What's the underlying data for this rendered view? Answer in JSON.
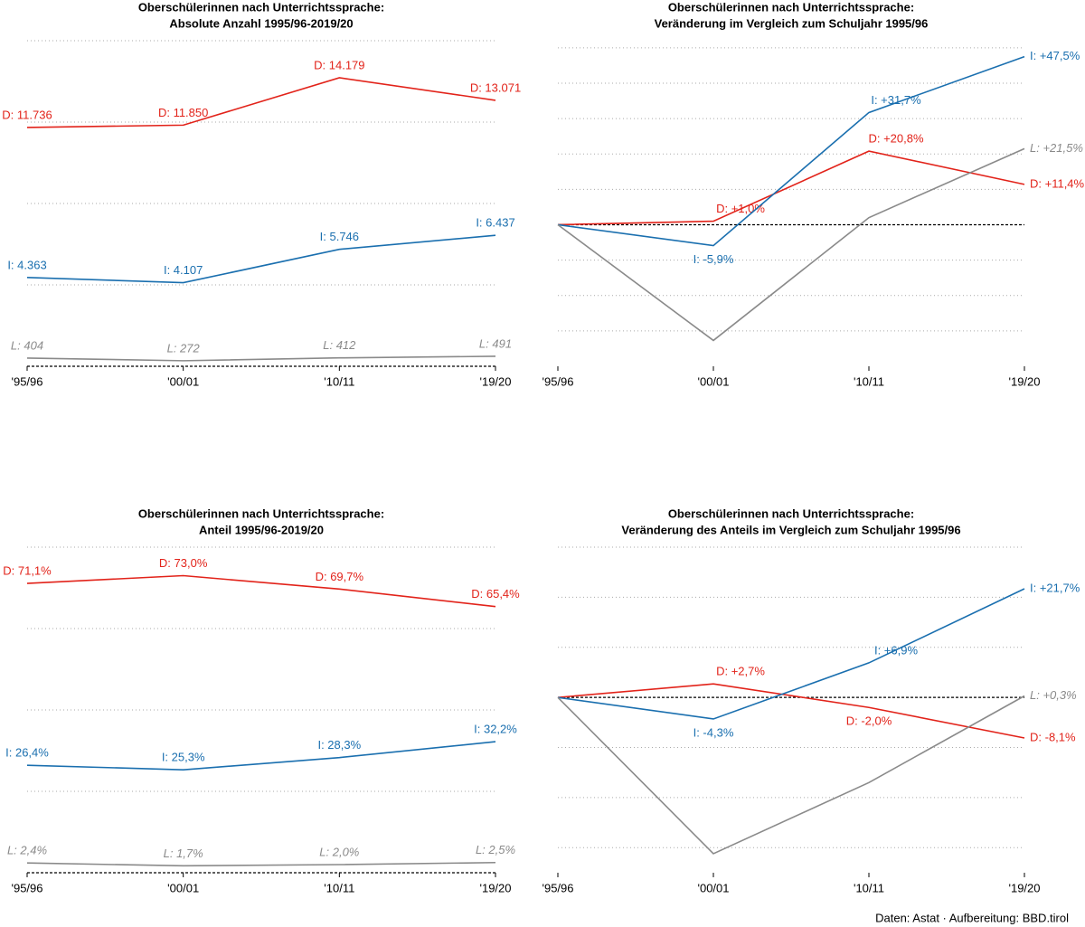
{
  "chart_data": [
    {
      "type": "line",
      "title": [
        "Oberschülerinnen nach Unterrichtssprache:",
        "Absolute Anzahl 1995/96-2019/20"
      ],
      "categories": [
        "'95/96",
        "'00/01",
        "'10/11",
        "'19/20"
      ],
      "ylim": [
        0,
        16000
      ],
      "yticks": [
        4000,
        8000,
        12000,
        16000
      ],
      "grid": true,
      "series": [
        {
          "name": "D",
          "color": "#e2231a",
          "values": [
            11736,
            11850,
            14179,
            13071
          ],
          "value_labels": [
            "D: 11.736",
            "D: 11.850",
            "D: 14.179",
            "D: 13.071"
          ]
        },
        {
          "name": "I",
          "color": "#1a6faf",
          "values": [
            4363,
            4107,
            5746,
            6437
          ],
          "value_labels": [
            "I: 4.363",
            "I: 4.107",
            "I: 5.746",
            "I: 6.437"
          ]
        },
        {
          "name": "L",
          "color": "#8a8a8a",
          "values": [
            404,
            272,
            412,
            491
          ],
          "value_labels": [
            "L: 404",
            "L: 272",
            "L: 412",
            "L: 491"
          ]
        }
      ]
    },
    {
      "type": "line",
      "title": [
        "Oberschülerinnen nach Unterrichtssprache:",
        "Veränderung im Vergleich zum Schuljahr 1995/96"
      ],
      "categories": [
        "'95/96",
        "'00/01",
        "'10/11",
        "'19/20"
      ],
      "ylim": [
        -40,
        52
      ],
      "yticks": [
        -30,
        -20,
        -10,
        10,
        20,
        30,
        40,
        50
      ],
      "grid": true,
      "series": [
        {
          "name": "D",
          "color": "#e2231a",
          "values": [
            0,
            1.0,
            20.8,
            11.4
          ],
          "value_labels": [
            null,
            "D: +1,0%",
            "D: +20,8%",
            "D: +11,4%"
          ]
        },
        {
          "name": "I",
          "color": "#1a6faf",
          "values": [
            0,
            -5.9,
            31.7,
            47.5
          ],
          "value_labels": [
            null,
            "I: -5,9%",
            "I: +31,7%",
            "I: +47,5%"
          ]
        },
        {
          "name": "L",
          "color": "#8a8a8a",
          "values": [
            0,
            -32.7,
            2.0,
            21.5
          ],
          "value_labels": [
            null,
            null,
            null,
            "L: +21,5%"
          ]
        }
      ]
    },
    {
      "type": "line",
      "title": [
        "Oberschülerinnen nach Unterrichtssprache:",
        "Anteil 1995/96-2019/20"
      ],
      "categories": [
        "'95/96",
        "'00/01",
        "'10/11",
        "'19/20"
      ],
      "ylim": [
        0,
        80
      ],
      "yticks": [
        20,
        40,
        60,
        80
      ],
      "grid": true,
      "series": [
        {
          "name": "D",
          "color": "#e2231a",
          "values": [
            71.1,
            73.0,
            69.7,
            65.4
          ],
          "value_labels": [
            "D: 71,1%",
            "D: 73,0%",
            "D: 69,7%",
            "D: 65,4%"
          ]
        },
        {
          "name": "I",
          "color": "#1a6faf",
          "values": [
            26.4,
            25.3,
            28.3,
            32.2
          ],
          "value_labels": [
            "I: 26,4%",
            "I: 25,3%",
            "I: 28,3%",
            "I: 32,2%"
          ]
        },
        {
          "name": "L",
          "color": "#8a8a8a",
          "values": [
            2.4,
            1.7,
            2.0,
            2.5
          ],
          "value_labels": [
            "L: 2,4%",
            "L: 1,7%",
            "L: 2,0%",
            "L: 2,5%"
          ]
        }
      ]
    },
    {
      "type": "line",
      "title": [
        "Oberschülerinnen nach Unterrichtssprache:",
        "Veränderung des Anteils im Vergleich zum Schuljahr 1995/96"
      ],
      "categories": [
        "'95/96",
        "'00/01",
        "'10/11",
        "'19/20"
      ],
      "ylim": [
        -35,
        30
      ],
      "yticks": [
        -30,
        -20,
        -10,
        10,
        20,
        30
      ],
      "grid": true,
      "series": [
        {
          "name": "D",
          "color": "#e2231a",
          "values": [
            0,
            2.7,
            -2.0,
            -8.1
          ],
          "value_labels": [
            null,
            "D: +2,7%",
            "D: -2,0%",
            "D: -8,1%"
          ]
        },
        {
          "name": "I",
          "color": "#1a6faf",
          "values": [
            0,
            -4.3,
            6.9,
            21.7
          ],
          "value_labels": [
            null,
            "I: -4,3%",
            "I: +6,9%",
            "I: +21,7%"
          ]
        },
        {
          "name": "L",
          "color": "#8a8a8a",
          "values": [
            0,
            -31.2,
            -17.0,
            0.3
          ],
          "value_labels": [
            null,
            null,
            null,
            "L: +0,3%"
          ]
        }
      ]
    }
  ],
  "footer": "Daten: Astat · Aufbereitung: BBD.tirol"
}
